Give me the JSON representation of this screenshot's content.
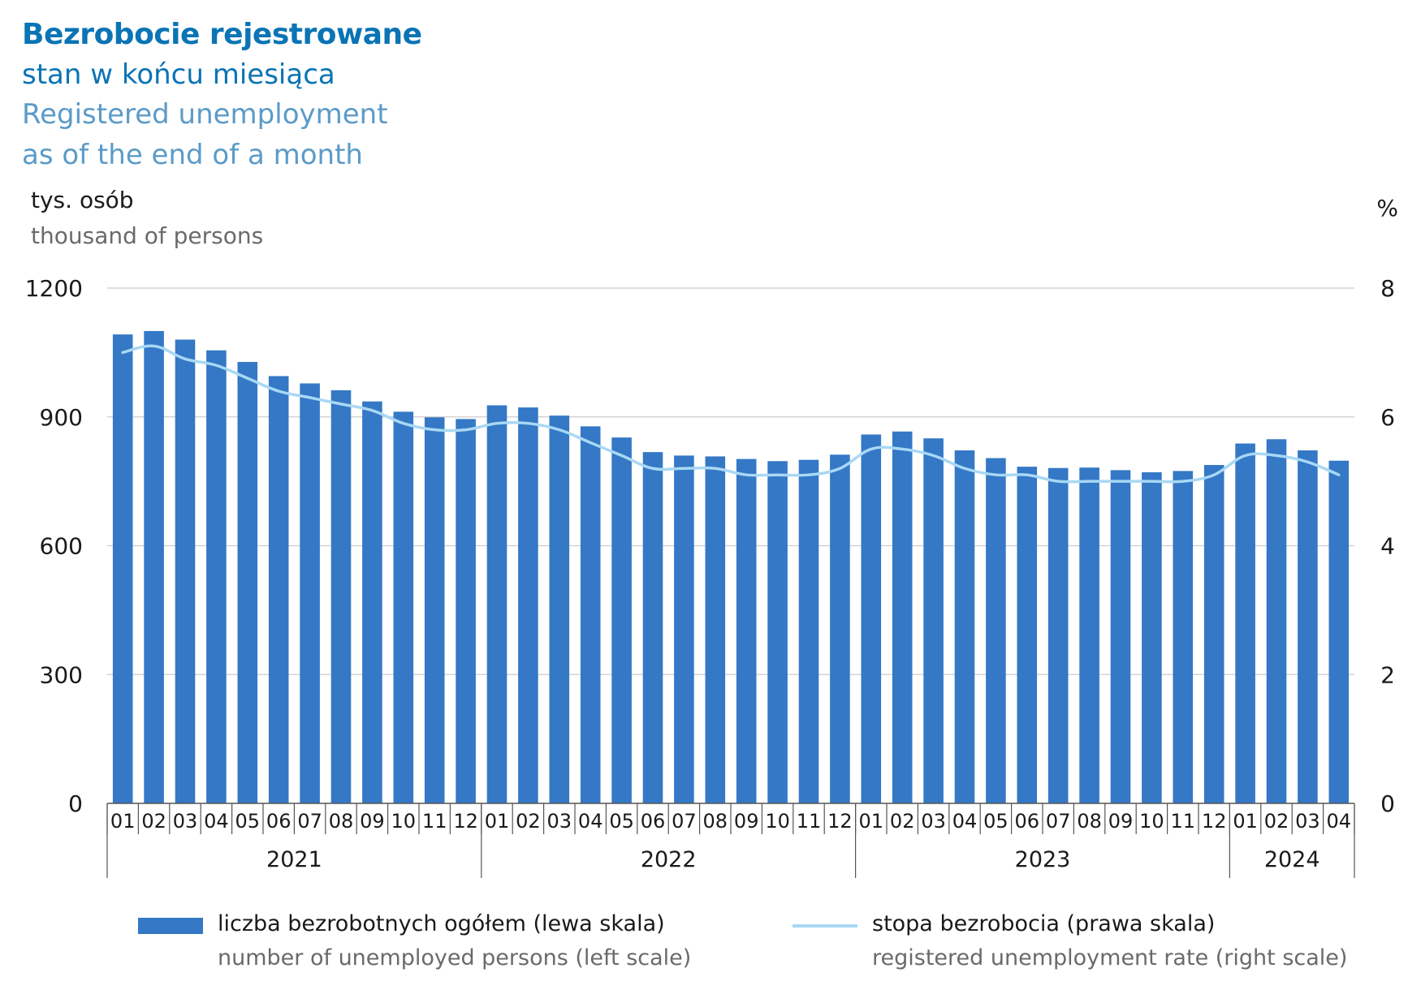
{
  "title": {
    "pl_bold": "Bezrobocie rejestrowane",
    "pl_sub": "stan w końcu miesiąca",
    "en_line1": "Registered unemployment",
    "en_line2": "as of the end of a month"
  },
  "units": {
    "left_pl": "tys. osób",
    "left_en": "thousand of persons",
    "right": "%"
  },
  "legend": {
    "bars_pl": "liczba bezrobotnych ogółem (lewa skala)",
    "bars_en": "number of unemployed persons (left scale)",
    "line_pl": "stopa bezrobocia (prawa skala)",
    "line_en": "registered unemployment rate (right scale)"
  },
  "colors": {
    "bar": "#3478c6",
    "line": "#a8d8f4",
    "grid": "#cccccc",
    "axis": "#555555"
  },
  "chart_data": {
    "type": "bar",
    "categories": [
      "01",
      "02",
      "03",
      "04",
      "05",
      "06",
      "07",
      "08",
      "09",
      "10",
      "11",
      "12",
      "01",
      "02",
      "03",
      "04",
      "05",
      "06",
      "07",
      "08",
      "09",
      "10",
      "11",
      "12",
      "01",
      "02",
      "03",
      "04",
      "05",
      "06",
      "07",
      "08",
      "09",
      "10",
      "11",
      "12",
      "01",
      "02",
      "03",
      "04"
    ],
    "years": [
      {
        "label": "2021",
        "months": 12
      },
      {
        "label": "2022",
        "months": 12
      },
      {
        "label": "2023",
        "months": 12
      },
      {
        "label": "2024",
        "months": 4
      }
    ],
    "series": [
      {
        "name": "liczba bezrobotnych ogółem (lewa skala)",
        "type": "bar",
        "axis": "left",
        "values": [
          1092,
          1100,
          1080,
          1055,
          1028,
          995,
          978,
          962,
          936,
          912,
          899,
          895,
          927,
          922,
          903,
          878,
          852,
          818,
          810,
          808,
          802,
          797,
          800,
          812,
          859,
          866,
          850,
          822,
          804,
          784,
          781,
          782,
          776,
          771,
          774,
          788,
          838,
          848,
          822,
          798
        ]
      },
      {
        "name": "stopa bezrobocia (prawa skala)",
        "type": "line",
        "axis": "right",
        "values": [
          7.0,
          7.1,
          6.9,
          6.8,
          6.6,
          6.4,
          6.3,
          6.2,
          6.1,
          5.9,
          5.8,
          5.8,
          5.9,
          5.9,
          5.8,
          5.6,
          5.4,
          5.2,
          5.2,
          5.2,
          5.1,
          5.1,
          5.1,
          5.2,
          5.5,
          5.5,
          5.4,
          5.2,
          5.1,
          5.1,
          5.0,
          5.0,
          5.0,
          5.0,
          5.0,
          5.1,
          5.4,
          5.4,
          5.3,
          5.1
        ]
      }
    ],
    "y_left": {
      "min": 0,
      "max": 1200,
      "ticks": [
        0,
        300,
        600,
        900,
        1200
      ]
    },
    "y_right": {
      "min": 0,
      "max": 8,
      "ticks": [
        0,
        2,
        4,
        6,
        8
      ]
    },
    "grid": true,
    "legend_position": "bottom"
  }
}
